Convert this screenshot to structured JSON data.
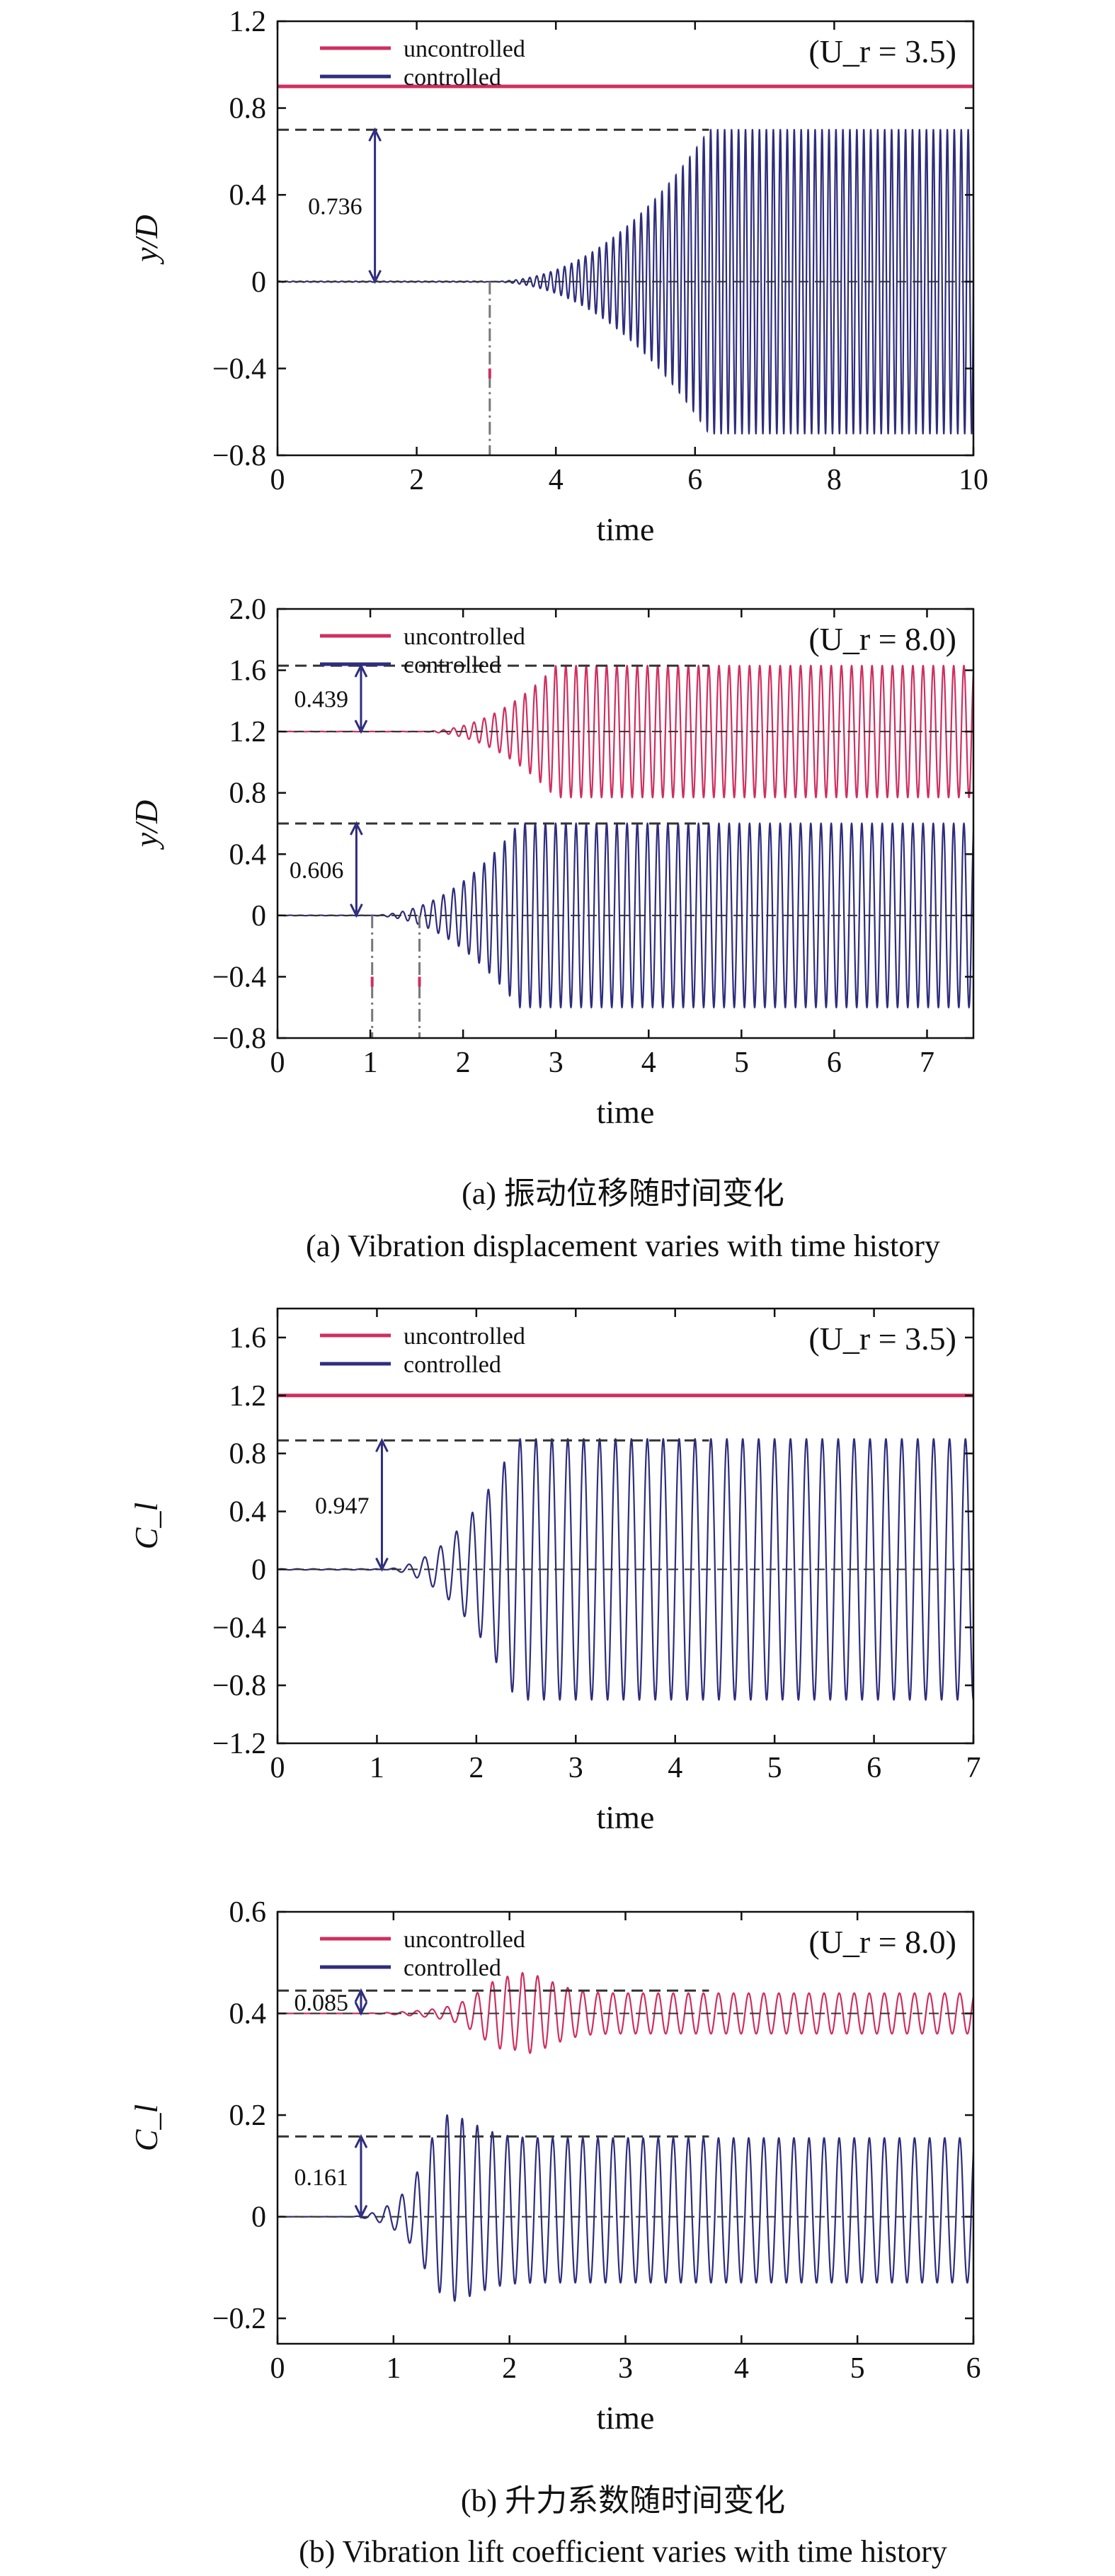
{
  "captions": {
    "a_zh": "(a) 振动位移随时间变化",
    "a_en": "(a) Vibration displacement varies with time history",
    "b_zh": "(b) 升力系数随时间变化",
    "b_en": "(b) Vibration lift coefficient varies with time history"
  },
  "colors": {
    "uncontrolled": "#cf2f5f",
    "controlled": "#2e2d7d",
    "dashed": "#333333",
    "annotation_arrow": "#2e2d7d",
    "dashdot": "#777777",
    "tick_marker": "#cf2f5f"
  },
  "chart_data": [
    {
      "type": "line",
      "ylabel": "y/D",
      "xlabel": "time",
      "xlim": [
        0,
        10
      ],
      "ylim": [
        -0.8,
        1.2
      ],
      "xticks": [
        0,
        2,
        4,
        6,
        8,
        10
      ],
      "yticks": [
        -0.8,
        -0.4,
        0,
        0.4,
        0.8,
        1.2
      ],
      "ytick_labels": [
        "−0.8",
        "−0.4",
        "0",
        "0.4",
        "0.8",
        "1.2"
      ],
      "legend": [
        "uncontrolled",
        "controlled"
      ],
      "legend_position": "top-left",
      "condition": "(U_r = 3.5)",
      "grid": false,
      "series": [
        {
          "name": "uncontrolled",
          "kind": "flat",
          "level": 0.9
        },
        {
          "name": "controlled",
          "kind": "oscillation",
          "base": 0,
          "onset": 3.0,
          "saturation": 6.2,
          "amplitude": 0.7,
          "period": 0.1,
          "lower_amplitude": 0.7
        }
      ],
      "annotations": [
        {
          "label": "0.736",
          "dash_level": 0.7,
          "arrow_x": 1.4,
          "from": 0,
          "to": 0.7
        },
        {
          "type": "onset-line",
          "x": 3.05
        }
      ]
    },
    {
      "type": "line",
      "ylabel": "y/D",
      "xlabel": "time",
      "xlim": [
        0,
        7.5
      ],
      "ylim": [
        -0.8,
        2.0
      ],
      "xticks": [
        0,
        1,
        2,
        3,
        4,
        5,
        6,
        7
      ],
      "yticks": [
        -0.8,
        -0.4,
        0,
        0.4,
        0.8,
        1.2,
        1.6,
        2.0
      ],
      "ytick_labels": [
        "−0.8",
        "−0.4",
        "0",
        "0.4",
        "0.8",
        "1.2",
        "1.6",
        "2.0"
      ],
      "legend": [
        "uncontrolled",
        "controlled"
      ],
      "legend_position": "top-left",
      "condition": "(U_r = 8.0)",
      "grid": false,
      "series": [
        {
          "name": "uncontrolled",
          "kind": "oscillation",
          "base": 1.2,
          "onset": 1.5,
          "saturation": 3.0,
          "amplitude": 0.43,
          "period": 0.11,
          "lower_amplitude": 0.43
        },
        {
          "name": "controlled",
          "kind": "oscillation",
          "base": 0,
          "onset": 0.95,
          "saturation": 2.6,
          "amplitude": 0.6,
          "period": 0.11,
          "lower_amplitude": 0.6
        }
      ],
      "annotations": [
        {
          "label": "0.439",
          "dash_level": 1.63,
          "arrow_x": 0.9,
          "from": 1.2,
          "to": 1.63
        },
        {
          "label": "0.606",
          "dash_level": 0.6,
          "arrow_x": 0.85,
          "from": 0,
          "to": 0.6
        },
        {
          "type": "onset-line",
          "x": 1.02
        },
        {
          "type": "onset-line",
          "x": 1.53
        }
      ]
    },
    {
      "type": "line",
      "ylabel": "C_l",
      "xlabel": "time",
      "xlim": [
        0,
        7
      ],
      "ylim": [
        -1.2,
        1.8
      ],
      "xticks": [
        0,
        1,
        2,
        3,
        4,
        5,
        6,
        7
      ],
      "yticks": [
        -1.2,
        -0.8,
        -0.4,
        0,
        0.4,
        0.8,
        1.2,
        1.6
      ],
      "ytick_labels": [
        "−1.2",
        "−0.8",
        "−0.4",
        "0",
        "0.4",
        "0.8",
        "1.2",
        "1.6"
      ],
      "legend": [
        "uncontrolled",
        "controlled"
      ],
      "legend_position": "top-left",
      "condition": "(U_r = 3.5)",
      "grid": false,
      "series": [
        {
          "name": "uncontrolled",
          "kind": "flat",
          "level": 1.2
        },
        {
          "name": "controlled",
          "kind": "oscillation",
          "base": 0,
          "onset": 1.0,
          "saturation": 2.4,
          "amplitude": 0.9,
          "period": 0.16,
          "lower_amplitude": 0.9
        }
      ],
      "annotations": [
        {
          "label": "0.947",
          "dash_level": 0.89,
          "arrow_x": 1.05,
          "from": 0,
          "to": 0.89
        }
      ]
    },
    {
      "type": "line",
      "ylabel": "C_l",
      "xlabel": "time",
      "xlim": [
        0,
        6
      ],
      "ylim": [
        -0.25,
        0.6
      ],
      "xticks": [
        0,
        1,
        2,
        3,
        4,
        5,
        6
      ],
      "yticks": [
        -0.2,
        0,
        0.2,
        0.4,
        0.6
      ],
      "ytick_labels": [
        "−0.2",
        "0",
        "0.2",
        "0.4",
        "0.6"
      ],
      "legend": [
        "uncontrolled",
        "controlled"
      ],
      "legend_position": "top-left",
      "condition": "(U_r = 8.0)",
      "grid": false,
      "series": [
        {
          "name": "uncontrolled",
          "kind": "oscillation",
          "base": 0.4,
          "onset": 0.6,
          "saturation": 2.1,
          "amplitude": 0.04,
          "peak": 0.08,
          "period": 0.13,
          "lower_amplitude": 0.04
        },
        {
          "name": "controlled",
          "kind": "oscillation",
          "base": 0,
          "onset": 0.6,
          "saturation": 1.45,
          "amplitude": 0.155,
          "peak": 0.2,
          "period": 0.13,
          "lower_amplitude": 0.13
        }
      ],
      "annotations": [
        {
          "label": "0.085",
          "dash_level": 0.445,
          "arrow_x": 0.72,
          "from": 0.4,
          "to": 0.445
        },
        {
          "label": "0.161",
          "dash_level": 0.158,
          "arrow_x": 0.72,
          "from": 0,
          "to": 0.158
        }
      ]
    }
  ]
}
